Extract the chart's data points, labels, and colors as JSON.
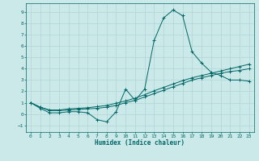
{
  "xlabel": "Humidex (Indice chaleur)",
  "bg_color": "#cce9e9",
  "grid_color": "#b0d4d4",
  "line_color": "#006666",
  "xlim": [
    -0.5,
    23.5
  ],
  "ylim": [
    -1.6,
    9.8
  ],
  "xticks": [
    0,
    1,
    2,
    3,
    4,
    5,
    6,
    7,
    8,
    9,
    10,
    11,
    12,
    13,
    14,
    15,
    16,
    17,
    18,
    19,
    20,
    21,
    22,
    23
  ],
  "yticks": [
    -1,
    0,
    1,
    2,
    3,
    4,
    5,
    6,
    7,
    8,
    9
  ],
  "line1_x": [
    0,
    1,
    2,
    3,
    4,
    5,
    6,
    7,
    8,
    9,
    10,
    11,
    12,
    13,
    14,
    15,
    16,
    17,
    18,
    19,
    20,
    21,
    22,
    23
  ],
  "line1_y": [
    1.0,
    0.5,
    0.1,
    0.1,
    0.2,
    0.2,
    0.1,
    -0.5,
    -0.7,
    0.2,
    2.2,
    1.2,
    2.2,
    6.5,
    8.5,
    9.2,
    8.7,
    5.5,
    4.5,
    3.7,
    3.4,
    3.0,
    3.0,
    2.9
  ],
  "line2_x": [
    0,
    1,
    2,
    3,
    4,
    5,
    6,
    7,
    8,
    9,
    10,
    11,
    12,
    13,
    14,
    15,
    16,
    17,
    18,
    19,
    20,
    21,
    22,
    23
  ],
  "line2_y": [
    1.0,
    0.6,
    0.3,
    0.3,
    0.35,
    0.4,
    0.45,
    0.5,
    0.6,
    0.75,
    1.0,
    1.2,
    1.5,
    1.8,
    2.1,
    2.4,
    2.7,
    3.0,
    3.2,
    3.4,
    3.6,
    3.75,
    3.85,
    4.0
  ],
  "line3_x": [
    0,
    1,
    2,
    3,
    4,
    5,
    6,
    7,
    8,
    9,
    10,
    11,
    12,
    13,
    14,
    15,
    16,
    17,
    18,
    19,
    20,
    21,
    22,
    23
  ],
  "line3_y": [
    1.0,
    0.6,
    0.35,
    0.35,
    0.45,
    0.5,
    0.55,
    0.65,
    0.75,
    0.95,
    1.15,
    1.4,
    1.7,
    2.05,
    2.35,
    2.65,
    2.95,
    3.2,
    3.4,
    3.6,
    3.8,
    4.0,
    4.2,
    4.4
  ]
}
